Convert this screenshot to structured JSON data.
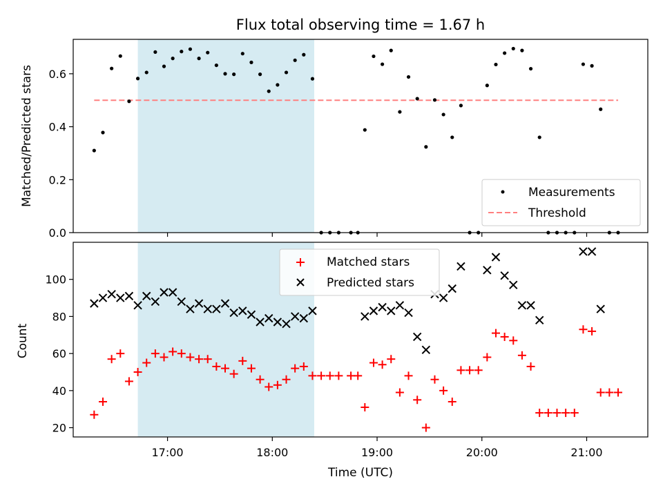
{
  "colors": {
    "measurement": "#000000",
    "threshold": "#ff7f7f",
    "matched": "#ff0000",
    "predicted": "#000000",
    "span": "#add8e6"
  },
  "chart_data": [
    {
      "type": "scatter",
      "title": "Flux total observing time = 1.67 h",
      "xlabel": "",
      "ylabel": "Matched/Predicted stars",
      "ylim": [
        0,
        0.73
      ],
      "yticks": [
        0.0,
        0.2,
        0.4,
        0.6
      ],
      "ytick_labels": [
        "0.0",
        "0.2",
        "0.4",
        "0.6"
      ],
      "xlim": [
        "16:06",
        "21:35"
      ],
      "shaded_span": [
        "16:43",
        "18:24"
      ],
      "grid": false,
      "legend_position": "lower-right",
      "threshold": {
        "name": "Threshold",
        "y": 0.5,
        "x_range": [
          "16:18",
          "21:18"
        ],
        "style": "dashed"
      },
      "series": [
        {
          "name": "Measurements",
          "marker": "dot",
          "points": [
            [
              "16:18",
              0.31
            ],
            [
              "16:23",
              0.378
            ],
            [
              "16:28",
              0.62
            ],
            [
              "16:33",
              0.667
            ],
            [
              "16:38",
              0.496
            ],
            [
              "16:43",
              0.582
            ],
            [
              "16:48",
              0.605
            ],
            [
              "16:53",
              0.682
            ],
            [
              "16:58",
              0.628
            ],
            [
              "17:03",
              0.658
            ],
            [
              "17:08",
              0.684
            ],
            [
              "17:13",
              0.693
            ],
            [
              "17:18",
              0.658
            ],
            [
              "17:23",
              0.68
            ],
            [
              "17:28",
              0.632
            ],
            [
              "17:33",
              0.6
            ],
            [
              "17:38",
              0.598
            ],
            [
              "17:43",
              0.676
            ],
            [
              "17:48",
              0.643
            ],
            [
              "17:53",
              0.598
            ],
            [
              "17:58",
              0.534
            ],
            [
              "18:03",
              0.558
            ],
            [
              "18:08",
              0.605
            ],
            [
              "18:13",
              0.651
            ],
            [
              "18:18",
              0.672
            ],
            [
              "18:23",
              0.581
            ],
            [
              "18:28",
              0.0
            ],
            [
              "18:33",
              0.0
            ],
            [
              "18:38",
              0.0
            ],
            [
              "18:45",
              0.0
            ],
            [
              "18:49",
              0.0
            ],
            [
              "18:53",
              0.388
            ],
            [
              "18:58",
              0.666
            ],
            [
              "19:03",
              0.636
            ],
            [
              "19:08",
              0.688
            ],
            [
              "19:13",
              0.456
            ],
            [
              "19:18",
              0.588
            ],
            [
              "19:23",
              0.506
            ],
            [
              "19:28",
              0.324
            ],
            [
              "19:33",
              0.501
            ],
            [
              "19:38",
              0.446
            ],
            [
              "19:43",
              0.36
            ],
            [
              "19:48",
              0.48
            ],
            [
              "19:53",
              0.0
            ],
            [
              "19:58",
              0.0
            ],
            [
              "20:03",
              0.556
            ],
            [
              "20:08",
              0.635
            ],
            [
              "20:13",
              0.678
            ],
            [
              "20:18",
              0.695
            ],
            [
              "20:23",
              0.688
            ],
            [
              "20:28",
              0.619
            ],
            [
              "20:33",
              0.36
            ],
            [
              "20:38",
              0.0
            ],
            [
              "20:43",
              0.0
            ],
            [
              "20:48",
              0.0
            ],
            [
              "20:53",
              0.0
            ],
            [
              "20:58",
              0.636
            ],
            [
              "21:03",
              0.63
            ],
            [
              "21:08",
              0.466
            ],
            [
              "21:13",
              0.0
            ],
            [
              "21:18",
              0.0
            ]
          ]
        }
      ]
    },
    {
      "type": "scatter",
      "title": "",
      "xlabel": "Time (UTC)",
      "ylabel": "Count",
      "ylim": [
        15,
        120
      ],
      "yticks": [
        20,
        40,
        60,
        80,
        100
      ],
      "ytick_labels": [
        "20",
        "40",
        "60",
        "80",
        "100"
      ],
      "xlim": [
        "16:06",
        "21:35"
      ],
      "xticks": [
        "17:00",
        "18:00",
        "19:00",
        "20:00",
        "21:00"
      ],
      "shaded_span": [
        "16:43",
        "18:24"
      ],
      "grid": false,
      "legend_position": "top-center",
      "series": [
        {
          "name": "Matched stars",
          "marker": "plus",
          "points": [
            [
              "16:18",
              27
            ],
            [
              "16:23",
              34
            ],
            [
              "16:28",
              57
            ],
            [
              "16:33",
              60
            ],
            [
              "16:38",
              45
            ],
            [
              "16:43",
              50
            ],
            [
              "16:48",
              55
            ],
            [
              "16:53",
              60
            ],
            [
              "16:58",
              58
            ],
            [
              "17:03",
              61
            ],
            [
              "17:08",
              60
            ],
            [
              "17:13",
              58
            ],
            [
              "17:18",
              57
            ],
            [
              "17:23",
              57
            ],
            [
              "17:28",
              53
            ],
            [
              "17:33",
              52
            ],
            [
              "17:38",
              49
            ],
            [
              "17:43",
              56
            ],
            [
              "17:48",
              52
            ],
            [
              "17:53",
              46
            ],
            [
              "17:58",
              42
            ],
            [
              "18:03",
              43
            ],
            [
              "18:08",
              46
            ],
            [
              "18:13",
              52
            ],
            [
              "18:18",
              53
            ],
            [
              "18:23",
              48
            ],
            [
              "18:28",
              48
            ],
            [
              "18:33",
              48
            ],
            [
              "18:38",
              48
            ],
            [
              "18:45",
              48
            ],
            [
              "18:49",
              48
            ],
            [
              "18:53",
              31
            ],
            [
              "18:58",
              55
            ],
            [
              "19:03",
              54
            ],
            [
              "19:08",
              57
            ],
            [
              "19:13",
              39
            ],
            [
              "19:18",
              48
            ],
            [
              "19:23",
              35
            ],
            [
              "19:28",
              20
            ],
            [
              "19:33",
              46
            ],
            [
              "19:38",
              40
            ],
            [
              "19:43",
              34
            ],
            [
              "19:48",
              51
            ],
            [
              "19:53",
              51
            ],
            [
              "19:58",
              51
            ],
            [
              "20:03",
              58
            ],
            [
              "20:08",
              71
            ],
            [
              "20:13",
              69
            ],
            [
              "20:18",
              67
            ],
            [
              "20:23",
              59
            ],
            [
              "20:28",
              53
            ],
            [
              "20:33",
              28
            ],
            [
              "20:38",
              28
            ],
            [
              "20:43",
              28
            ],
            [
              "20:48",
              28
            ],
            [
              "20:53",
              28
            ],
            [
              "20:58",
              73
            ],
            [
              "21:03",
              72
            ],
            [
              "21:08",
              39
            ],
            [
              "21:13",
              39
            ],
            [
              "21:18",
              39
            ]
          ]
        },
        {
          "name": "Predicted stars",
          "marker": "x",
          "points": [
            [
              "16:18",
              87
            ],
            [
              "16:23",
              90
            ],
            [
              "16:28",
              92
            ],
            [
              "16:33",
              90
            ],
            [
              "16:38",
              91
            ],
            [
              "16:43",
              86
            ],
            [
              "16:48",
              91
            ],
            [
              "16:53",
              88
            ],
            [
              "16:58",
              93
            ],
            [
              "17:03",
              93
            ],
            [
              "17:08",
              88
            ],
            [
              "17:13",
              84
            ],
            [
              "17:18",
              87
            ],
            [
              "17:23",
              84
            ],
            [
              "17:28",
              84
            ],
            [
              "17:33",
              87
            ],
            [
              "17:38",
              82
            ],
            [
              "17:43",
              83
            ],
            [
              "17:48",
              81
            ],
            [
              "17:53",
              77
            ],
            [
              "17:58",
              79
            ],
            [
              "18:03",
              77
            ],
            [
              "18:08",
              76
            ],
            [
              "18:13",
              80
            ],
            [
              "18:18",
              79
            ],
            [
              "18:23",
              83
            ],
            [
              "18:53",
              80
            ],
            [
              "18:58",
              83
            ],
            [
              "19:03",
              85
            ],
            [
              "19:08",
              83
            ],
            [
              "19:13",
              86
            ],
            [
              "19:18",
              82
            ],
            [
              "19:23",
              69
            ],
            [
              "19:28",
              62
            ],
            [
              "19:33",
              92
            ],
            [
              "19:38",
              90
            ],
            [
              "19:43",
              95
            ],
            [
              "19:48",
              107
            ],
            [
              "20:03",
              105
            ],
            [
              "20:08",
              112
            ],
            [
              "20:13",
              102
            ],
            [
              "20:18",
              97
            ],
            [
              "20:23",
              86
            ],
            [
              "20:28",
              86
            ],
            [
              "20:33",
              78
            ],
            [
              "20:58",
              115
            ],
            [
              "21:03",
              115
            ],
            [
              "21:08",
              84
            ]
          ]
        }
      ]
    }
  ]
}
